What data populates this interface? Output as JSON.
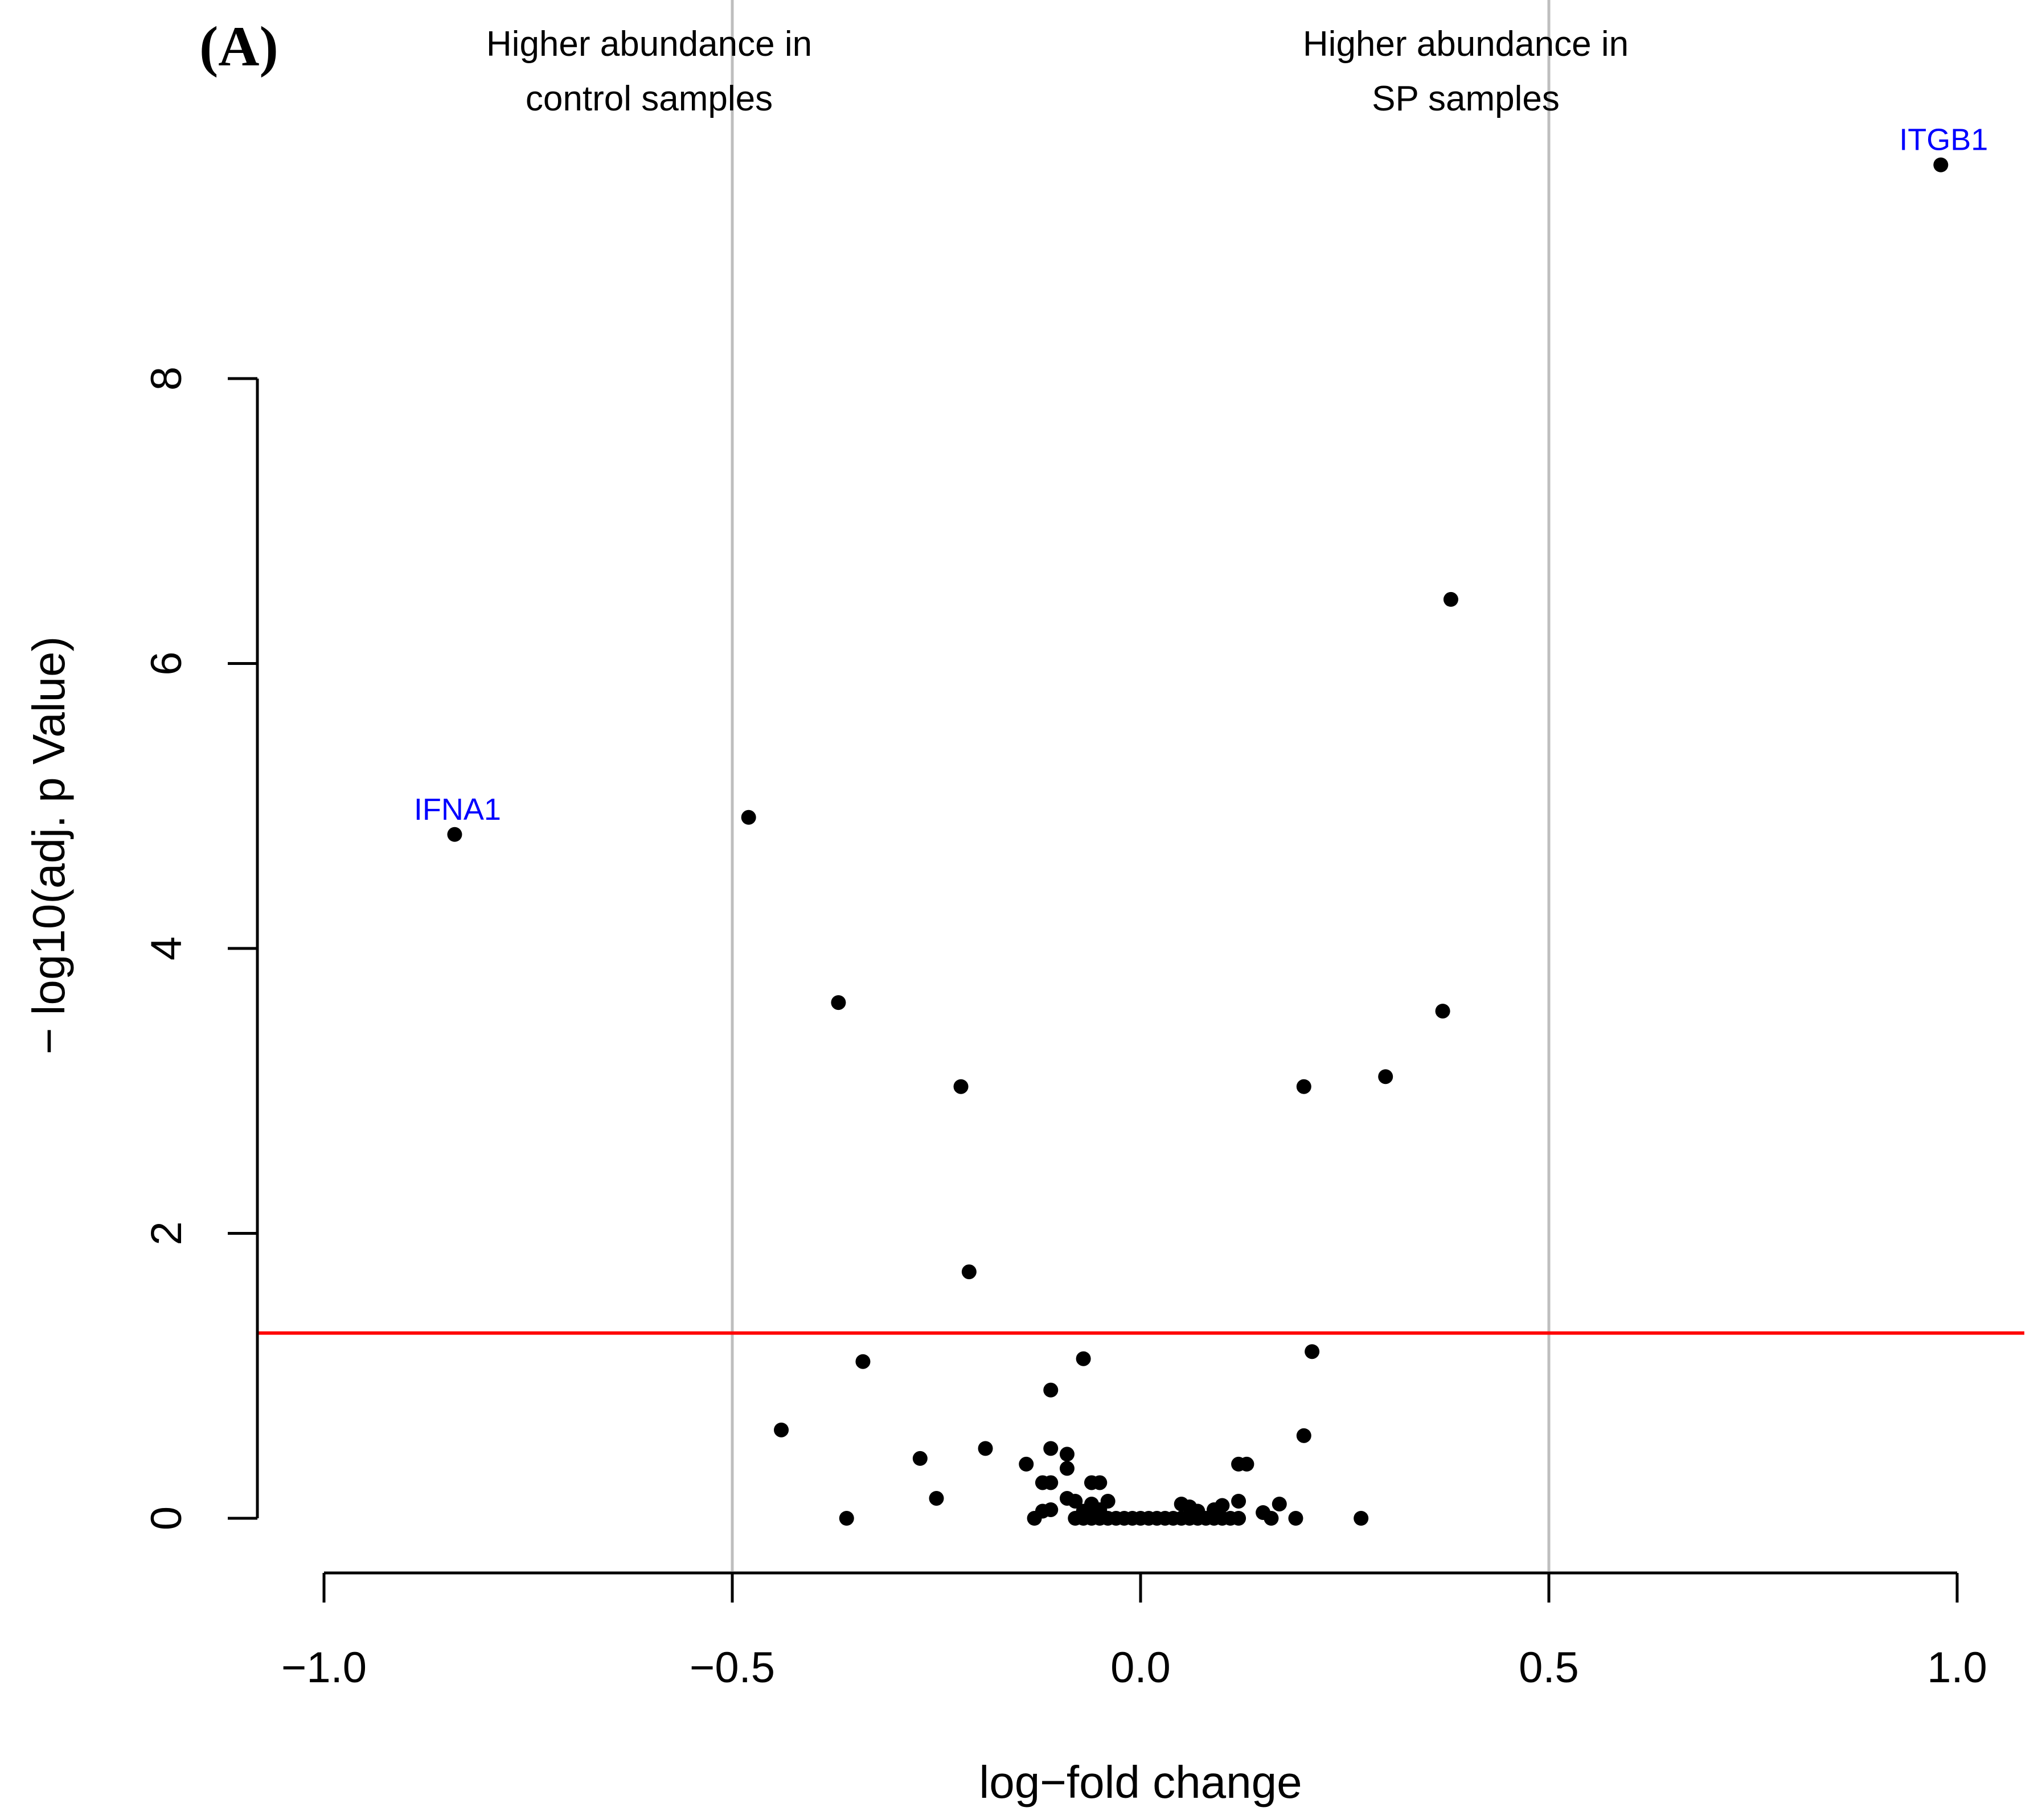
{
  "panel_label": "(A)",
  "chart_data": {
    "type": "scatter",
    "title": "",
    "xlabel": "log−fold change",
    "ylabel": "− log10(adj. p Value)",
    "xlim": [
      -1.0,
      1.0
    ],
    "ylim": [
      0,
      8
    ],
    "x_ticks": [
      -1.0,
      -0.5,
      0.0,
      0.5,
      1.0
    ],
    "x_tick_labels": [
      "−1.0",
      "−0.5",
      "0.0",
      "0.5",
      "1.0"
    ],
    "y_ticks": [
      0,
      2,
      4,
      6,
      8
    ],
    "y_tick_labels": [
      "0",
      "2",
      "4",
      "6",
      "8"
    ],
    "vertical_lines": [
      {
        "x": -0.5,
        "color": "#bebebe",
        "label": [
          "Higher abundance in",
          "control samples"
        ]
      },
      {
        "x": 0.5,
        "color": "#bebebe",
        "label": [
          "Higher abundance in",
          "SP samples"
        ]
      }
    ],
    "threshold_line": {
      "y": 1.3,
      "color": "#ff0000"
    },
    "point_color": "#000000",
    "label_color": "#0000ff",
    "labeled_points": [
      {
        "name": "ITGB1",
        "x": 0.98,
        "y": 9.5
      },
      {
        "name": "IFNA1",
        "x": -0.84,
        "y": 4.8
      }
    ],
    "points": [
      [
        0.38,
        6.45
      ],
      [
        -0.48,
        4.92
      ],
      [
        -0.37,
        3.62
      ],
      [
        0.37,
        3.56
      ],
      [
        0.3,
        3.1
      ],
      [
        -0.22,
        3.03
      ],
      [
        0.2,
        3.03
      ],
      [
        -0.21,
        1.73
      ],
      [
        0.21,
        1.17
      ],
      [
        -0.34,
        1.1
      ],
      [
        -0.07,
        1.12
      ],
      [
        -0.11,
        0.9
      ],
      [
        -0.44,
        0.62
      ],
      [
        0.2,
        0.58
      ],
      [
        -0.19,
        0.49
      ],
      [
        -0.11,
        0.49
      ],
      [
        -0.09,
        0.45
      ],
      [
        -0.27,
        0.42
      ],
      [
        -0.14,
        0.38
      ],
      [
        -0.09,
        0.35
      ],
      [
        0.12,
        0.38
      ],
      [
        0.13,
        0.38
      ],
      [
        -0.12,
        0.25
      ],
      [
        -0.11,
        0.25
      ],
      [
        -0.06,
        0.25
      ],
      [
        -0.05,
        0.25
      ],
      [
        -0.25,
        0.14
      ],
      [
        -0.09,
        0.14
      ],
      [
        -0.08,
        0.12
      ],
      [
        -0.06,
        0.1
      ],
      [
        -0.04,
        0.12
      ],
      [
        0.05,
        0.1
      ],
      [
        0.06,
        0.08
      ],
      [
        0.1,
        0.09
      ],
      [
        0.12,
        0.12
      ],
      [
        0.17,
        0.1
      ],
      [
        -0.12,
        0.05
      ],
      [
        -0.11,
        0.06
      ],
      [
        -0.07,
        0.05
      ],
      [
        -0.05,
        0.06
      ],
      [
        0.07,
        0.05
      ],
      [
        0.09,
        0.06
      ],
      [
        0.15,
        0.04
      ],
      [
        -0.36,
        0.0
      ],
      [
        -0.13,
        0.0
      ],
      [
        -0.08,
        0.0
      ],
      [
        -0.07,
        0.0
      ],
      [
        -0.06,
        0.0
      ],
      [
        -0.05,
        0.0
      ],
      [
        -0.04,
        0.0
      ],
      [
        -0.03,
        0.0
      ],
      [
        -0.02,
        0.0
      ],
      [
        -0.01,
        0.0
      ],
      [
        0.0,
        0.0
      ],
      [
        0.01,
        0.0
      ],
      [
        0.02,
        0.0
      ],
      [
        0.03,
        0.0
      ],
      [
        0.04,
        0.0
      ],
      [
        0.05,
        0.0
      ],
      [
        0.06,
        0.0
      ],
      [
        0.07,
        0.0
      ],
      [
        0.08,
        0.0
      ],
      [
        0.09,
        0.0
      ],
      [
        0.1,
        0.0
      ],
      [
        0.11,
        0.0
      ],
      [
        0.12,
        0.0
      ],
      [
        0.16,
        0.0
      ],
      [
        0.19,
        0.0
      ],
      [
        0.27,
        0.0
      ]
    ]
  }
}
